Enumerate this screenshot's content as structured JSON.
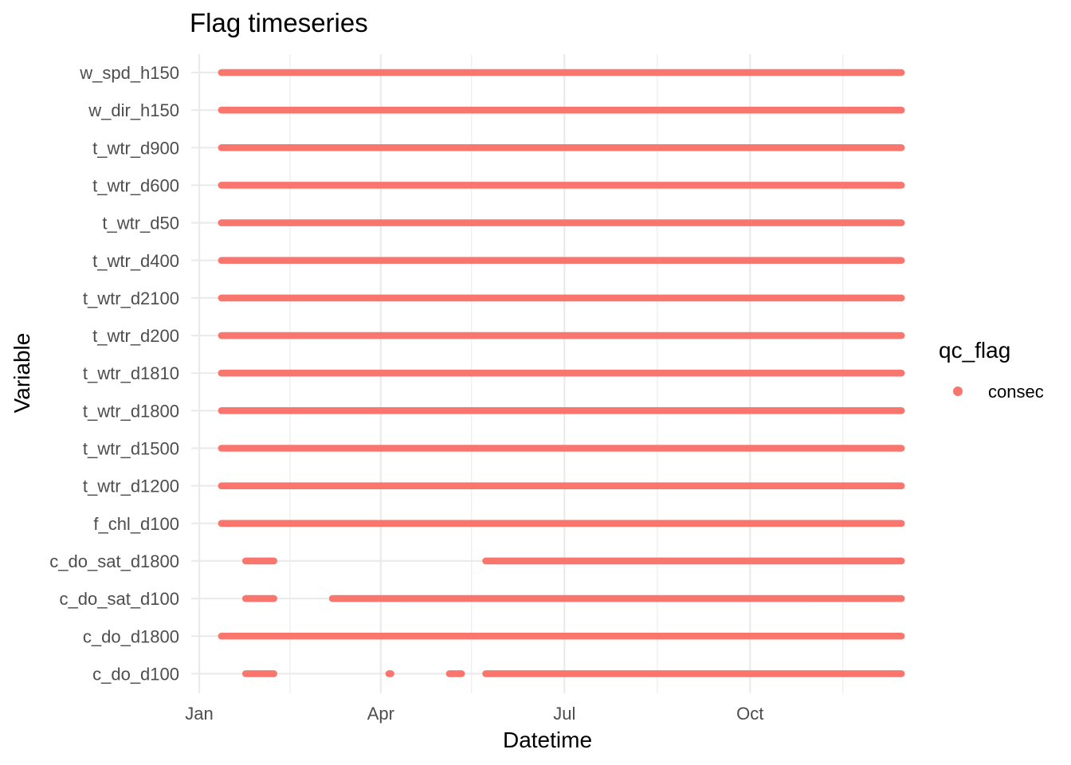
{
  "chart_data": {
    "type": "scatter",
    "title": "Flag timeseries",
    "xlabel": "Datetime",
    "ylabel": "Variable",
    "x_ticks": [
      "Jan",
      "Apr",
      "Jul",
      "Oct"
    ],
    "x_range": [
      "2021-01-01",
      "2021-12-31"
    ],
    "grid": true,
    "legend": {
      "title": "qc_flag",
      "position": "right",
      "entries": [
        {
          "label": "consec",
          "color": "#F8766D"
        }
      ]
    },
    "categories": [
      "w_spd_h150",
      "w_dir_h150",
      "t_wtr_d900",
      "t_wtr_d600",
      "t_wtr_d50",
      "t_wtr_d400",
      "t_wtr_d2100",
      "t_wtr_d200",
      "t_wtr_d1810",
      "t_wtr_d1800",
      "t_wtr_d1500",
      "t_wtr_d1200",
      "f_chl_d100",
      "c_do_sat_d1800",
      "c_do_sat_d100",
      "c_do_d1800",
      "c_do_d100"
    ],
    "series": [
      {
        "name": "consec",
        "color": "#F8766D",
        "ranges": [
          {
            "variable": "w_spd_h150",
            "segments": [
              [
                "2021-01-12",
                "2021-12-15"
              ]
            ]
          },
          {
            "variable": "w_dir_h150",
            "segments": [
              [
                "2021-01-12",
                "2021-12-15"
              ]
            ]
          },
          {
            "variable": "t_wtr_d900",
            "segments": [
              [
                "2021-01-12",
                "2021-12-15"
              ]
            ]
          },
          {
            "variable": "t_wtr_d600",
            "segments": [
              [
                "2021-01-12",
                "2021-12-15"
              ]
            ]
          },
          {
            "variable": "t_wtr_d50",
            "segments": [
              [
                "2021-01-12",
                "2021-12-15"
              ]
            ]
          },
          {
            "variable": "t_wtr_d400",
            "segments": [
              [
                "2021-01-12",
                "2021-12-15"
              ]
            ]
          },
          {
            "variable": "t_wtr_d2100",
            "segments": [
              [
                "2021-01-12",
                "2021-12-15"
              ]
            ]
          },
          {
            "variable": "t_wtr_d200",
            "segments": [
              [
                "2021-01-12",
                "2021-12-15"
              ]
            ]
          },
          {
            "variable": "t_wtr_d1810",
            "segments": [
              [
                "2021-01-12",
                "2021-12-15"
              ]
            ]
          },
          {
            "variable": "t_wtr_d1800",
            "segments": [
              [
                "2021-01-12",
                "2021-12-15"
              ]
            ]
          },
          {
            "variable": "t_wtr_d1500",
            "segments": [
              [
                "2021-01-12",
                "2021-12-15"
              ]
            ]
          },
          {
            "variable": "t_wtr_d1200",
            "segments": [
              [
                "2021-01-12",
                "2021-12-15"
              ]
            ]
          },
          {
            "variable": "f_chl_d100",
            "segments": [
              [
                "2021-01-12",
                "2021-12-15"
              ]
            ]
          },
          {
            "variable": "c_do_sat_d1800",
            "segments": [
              [
                "2021-01-24",
                "2021-02-07"
              ],
              [
                "2021-05-23",
                "2021-12-15"
              ]
            ]
          },
          {
            "variable": "c_do_sat_d100",
            "segments": [
              [
                "2021-01-24",
                "2021-02-07"
              ],
              [
                "2021-03-08",
                "2021-12-15"
              ]
            ]
          },
          {
            "variable": "c_do_d1800",
            "segments": [
              [
                "2021-01-12",
                "2021-12-15"
              ]
            ]
          },
          {
            "variable": "c_do_d100",
            "segments": [
              [
                "2021-01-24",
                "2021-02-07"
              ],
              [
                "2021-04-05",
                "2021-04-06"
              ],
              [
                "2021-05-05",
                "2021-05-08"
              ],
              [
                "2021-05-09",
                "2021-05-11"
              ],
              [
                "2021-05-23",
                "2021-12-15"
              ]
            ]
          }
        ]
      }
    ]
  }
}
